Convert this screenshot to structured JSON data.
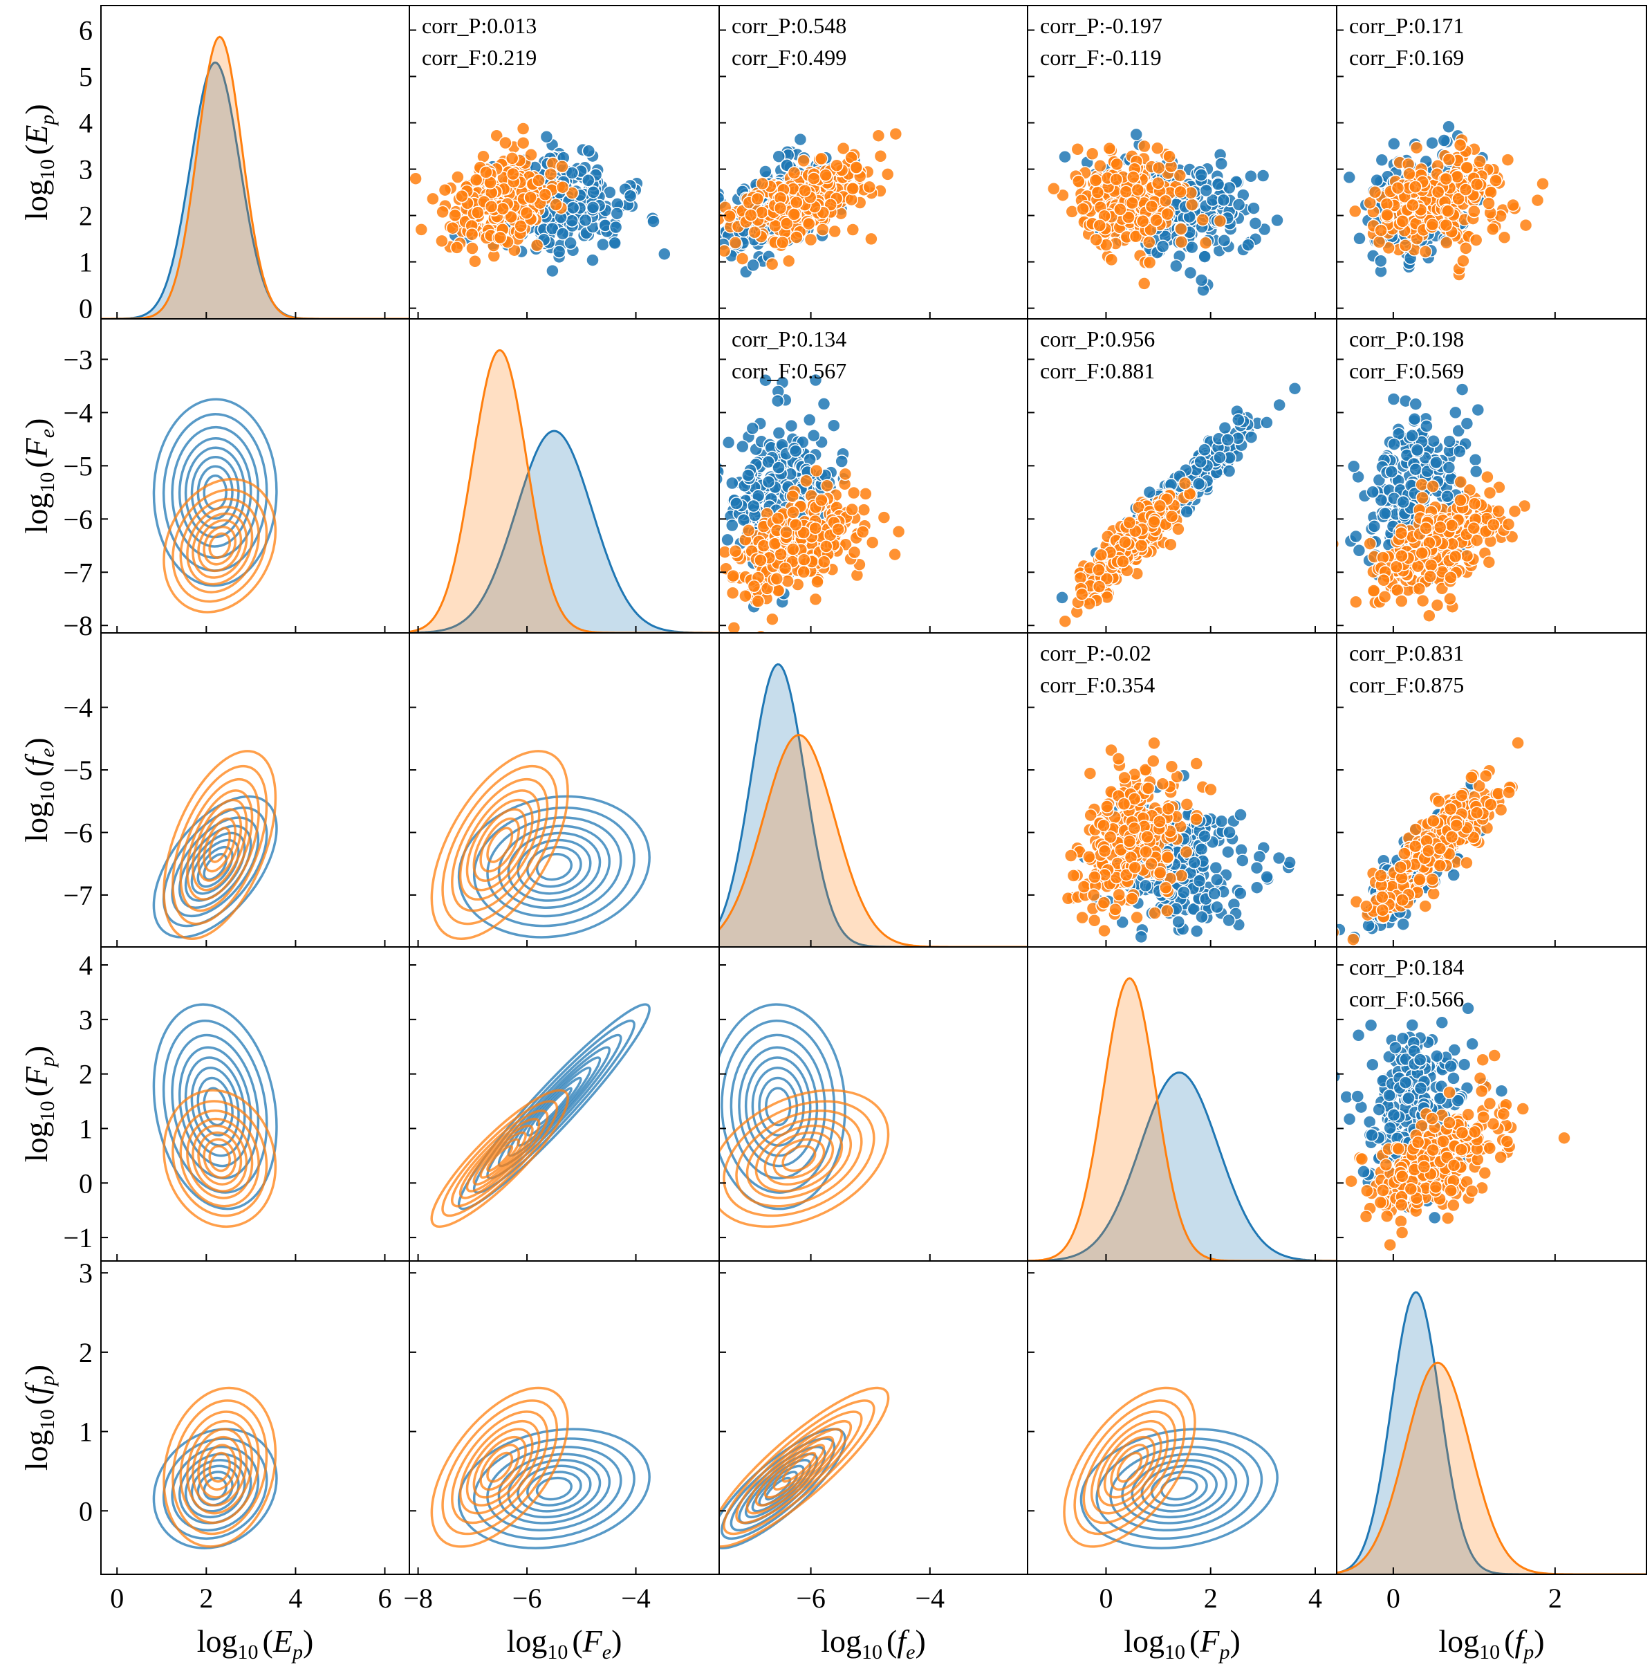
{
  "chart_data": {
    "type": "pairplot",
    "diag": "kde",
    "upper": "scatter",
    "lower": "kde",
    "grid": false,
    "legend": "none",
    "variables": [
      {
        "key": "Ep",
        "label": {
          "base": "log",
          "sub": "10",
          "open": "(",
          "var": "E",
          "var_sub": "p",
          "close": ")"
        },
        "ticks_x": [
          0,
          2,
          4,
          6
        ],
        "ticks_y": [
          0,
          1,
          2,
          3,
          4,
          5,
          6
        ],
        "xlim": [
          -0.36,
          6.55
        ],
        "ylim": [
          -0.23,
          6.53
        ]
      },
      {
        "key": "Fe",
        "label": {
          "base": "log",
          "sub": "10",
          "open": "(",
          "var": "F",
          "var_sub": "e",
          "close": ")"
        },
        "ticks_x": [
          -8,
          -6,
          -4
        ],
        "ticks_y": [
          -3,
          -4,
          -5,
          -6,
          -7,
          -8
        ],
        "xlim": [
          -8.16,
          -2.47
        ],
        "ylim": [
          -8.14,
          -2.24
        ]
      },
      {
        "key": "fe",
        "label": {
          "base": "log",
          "sub": "10",
          "open": "(",
          "var": "f",
          "var_sub": "e",
          "close": ")"
        },
        "ticks_x": [
          -6,
          -4
        ],
        "ticks_y": [
          -4,
          -5,
          -6,
          -7
        ],
        "xlim": [
          -7.54,
          -2.36
        ],
        "ylim": [
          -7.83,
          -2.81
        ]
      },
      {
        "key": "Fp",
        "label": {
          "base": "log",
          "sub": "10",
          "open": "(",
          "var": "F",
          "var_sub": "p",
          "close": ")"
        },
        "ticks_x": [
          0,
          2,
          4
        ],
        "ticks_y": [
          -1,
          0,
          1,
          2,
          3,
          4
        ],
        "xlim": [
          -1.5,
          4.41
        ],
        "ylim": [
          -1.43,
          4.33
        ]
      },
      {
        "key": "fp",
        "label": {
          "base": "log",
          "sub": "10",
          "open": "(",
          "var": "f",
          "var_sub": "p",
          "close": ")"
        },
        "ticks_x": [
          0,
          2
        ],
        "ticks_y": [
          0,
          1,
          2,
          3
        ],
        "xlim": [
          -0.7,
          3.13
        ],
        "ylim": [
          -0.8,
          3.15
        ]
      }
    ],
    "series": [
      {
        "color": "#1f77b4",
        "corr_key": "corr_P",
        "stats": {
          "Ep": {
            "mean": 2.2,
            "sd": 0.55
          },
          "Fe": {
            "mean": -5.5,
            "sd": 0.7
          },
          "fe": {
            "mean": -6.55,
            "sd": 0.45
          },
          "Fp": {
            "mean": 1.4,
            "sd": 0.75
          },
          "fp": {
            "mean": 0.28,
            "sd": 0.3
          }
        }
      },
      {
        "color": "#ff7f0e",
        "corr_key": "corr_F",
        "stats": {
          "Ep": {
            "mean": 2.3,
            "sd": 0.5
          },
          "Fe": {
            "mean": -6.5,
            "sd": 0.5
          },
          "fe": {
            "mean": -6.2,
            "sd": 0.6
          },
          "Fp": {
            "mean": 0.45,
            "sd": 0.5
          },
          "fp": {
            "mean": 0.55,
            "sd": 0.4
          }
        }
      }
    ],
    "annotations": [
      {
        "row": 0,
        "col": 1,
        "corr_P": 0.013,
        "corr_F": 0.219,
        "text_P": "corr_P:0.013",
        "text_F": "corr_F:0.219"
      },
      {
        "row": 0,
        "col": 2,
        "corr_P": 0.548,
        "corr_F": 0.499,
        "text_P": "corr_P:0.548",
        "text_F": "corr_F:0.499"
      },
      {
        "row": 0,
        "col": 3,
        "corr_P": -0.197,
        "corr_F": -0.119,
        "text_P": "corr_P:-0.197",
        "text_F": "corr_F:-0.119"
      },
      {
        "row": 0,
        "col": 4,
        "corr_P": 0.171,
        "corr_F": 0.169,
        "text_P": "corr_P:0.171",
        "text_F": "corr_F:0.169"
      },
      {
        "row": 1,
        "col": 2,
        "corr_P": 0.134,
        "corr_F": 0.567,
        "text_P": "corr_P:0.134",
        "text_F": "corr_F:0.567"
      },
      {
        "row": 1,
        "col": 3,
        "corr_P": 0.956,
        "corr_F": 0.881,
        "text_P": "corr_P:0.956",
        "text_F": "corr_F:0.881"
      },
      {
        "row": 1,
        "col": 4,
        "corr_P": 0.198,
        "corr_F": 0.569,
        "text_P": "corr_P:0.198",
        "text_F": "corr_F:0.569"
      },
      {
        "row": 2,
        "col": 3,
        "corr_P": -0.02,
        "corr_F": 0.354,
        "text_P": "corr_P:-0.02",
        "text_F": "corr_F:0.354"
      },
      {
        "row": 2,
        "col": 4,
        "corr_P": 0.831,
        "corr_F": 0.875,
        "text_P": "corr_P:0.831",
        "text_F": "corr_F:0.875"
      },
      {
        "row": 3,
        "col": 4,
        "corr_P": 0.184,
        "corr_F": 0.566,
        "text_P": "corr_P:0.184",
        "text_F": "corr_F:0.566"
      }
    ]
  }
}
